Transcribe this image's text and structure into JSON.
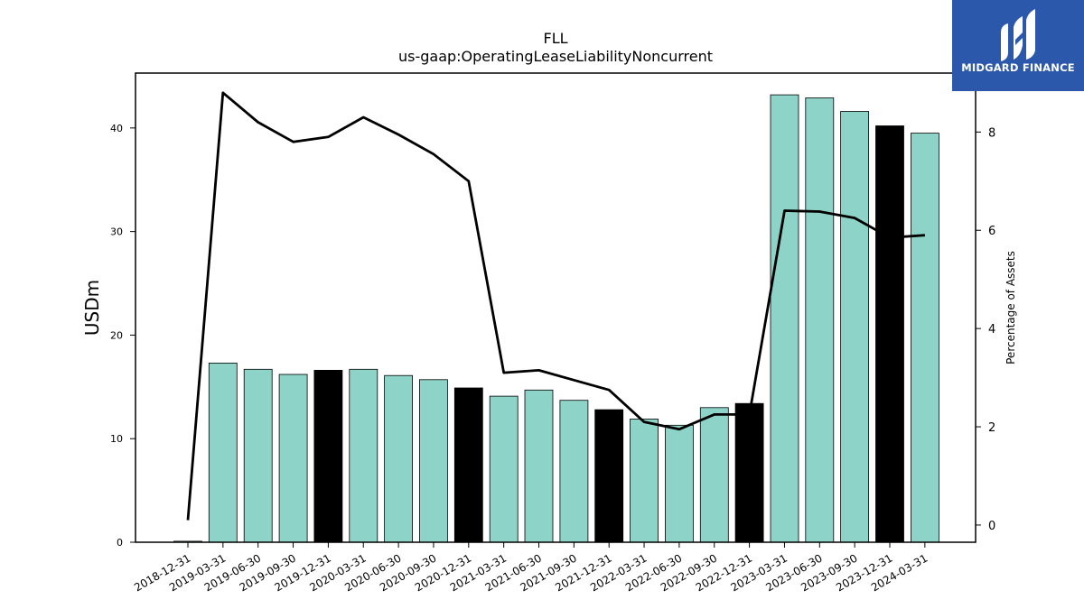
{
  "chart_data": {
    "type": "bar",
    "title": "FLL",
    "subtitle": "us-gaap:OperatingLeaseLiabilityNoncurrent",
    "ylabel": "USDm",
    "ylabel_right": "Percentage of Assets",
    "ylim": [
      0,
      45.3
    ],
    "ylim_right": [
      -0.35,
      9.2
    ],
    "yticks": [
      0,
      10,
      20,
      30,
      40
    ],
    "yticks_right": [
      0,
      2,
      4,
      6,
      8
    ],
    "grid": false,
    "categories": [
      "2018-12-31",
      "2019-03-31",
      "2019-06-30",
      "2019-09-30",
      "2019-12-31",
      "2020-03-31",
      "2020-06-30",
      "2020-09-30",
      "2020-12-31",
      "2021-03-31",
      "2021-06-30",
      "2021-09-30",
      "2021-12-31",
      "2022-03-31",
      "2022-06-30",
      "2022-09-30",
      "2022-12-31",
      "2023-03-31",
      "2023-06-30",
      "2023-09-30",
      "2023-12-31",
      "2024-03-31"
    ],
    "series": [
      {
        "kind": "bar",
        "axis": "left",
        "values": [
          0.1,
          17.3,
          16.7,
          16.2,
          16.6,
          16.7,
          16.1,
          15.7,
          14.9,
          14.1,
          14.7,
          13.7,
          12.8,
          11.9,
          11.3,
          13.0,
          13.4,
          43.2,
          42.9,
          41.6,
          40.2,
          39.5
        ],
        "colors": [
          "#8dd3c7",
          "#8dd3c7",
          "#8dd3c7",
          "#8dd3c7",
          "#000000",
          "#8dd3c7",
          "#8dd3c7",
          "#8dd3c7",
          "#000000",
          "#8dd3c7",
          "#8dd3c7",
          "#8dd3c7",
          "#000000",
          "#8dd3c7",
          "#8dd3c7",
          "#8dd3c7",
          "#000000",
          "#8dd3c7",
          "#8dd3c7",
          "#8dd3c7",
          "#000000",
          "#8dd3c7"
        ]
      },
      {
        "kind": "line",
        "axis": "right",
        "color": "#000000",
        "values": [
          0.1,
          8.8,
          8.2,
          7.8,
          7.9,
          8.3,
          7.95,
          7.55,
          7.0,
          3.1,
          3.15,
          2.95,
          2.75,
          2.1,
          1.95,
          2.25,
          2.25,
          6.4,
          6.38,
          6.25,
          5.85,
          5.9
        ]
      }
    ]
  },
  "logo": {
    "text": "MIDGARD FINANCE",
    "color": "#2b58ab"
  }
}
